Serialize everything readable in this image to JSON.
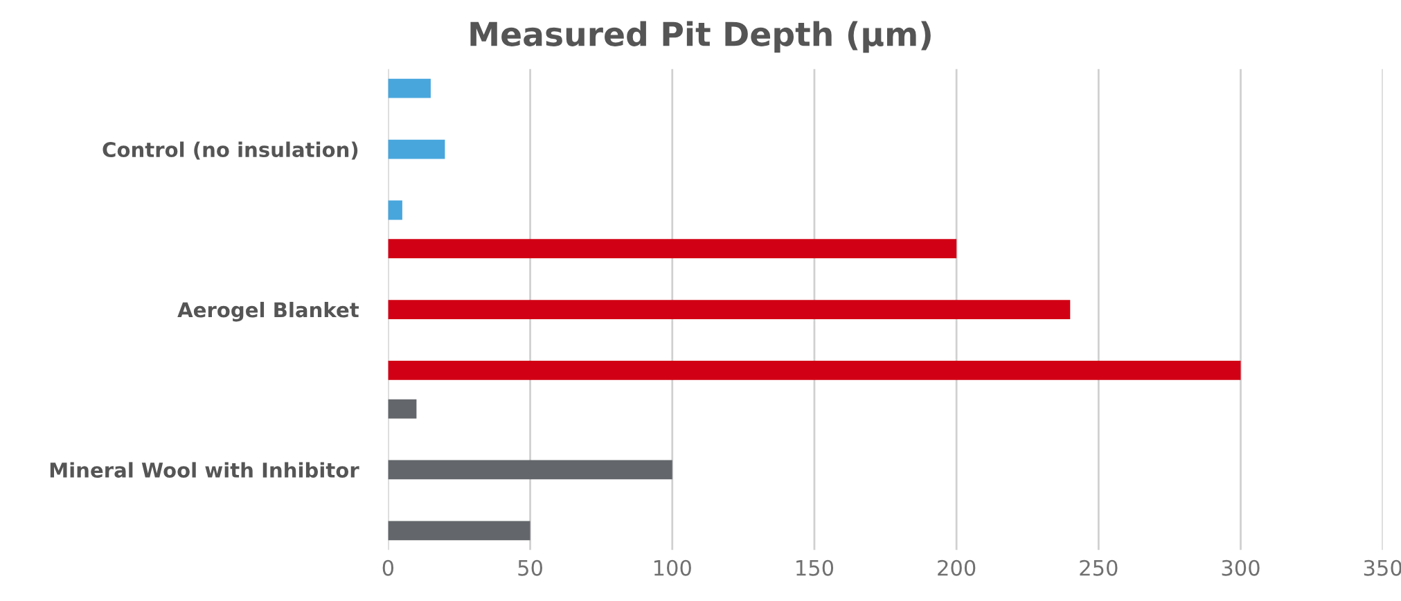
{
  "chart_data": {
    "type": "bar",
    "orientation": "horizontal",
    "title": "Measured Pit Depth (µm)",
    "categories": [
      "Control (no insulation)",
      "Aerogel Blanket",
      "Mineral Wool with Inhibitor"
    ],
    "series": [
      {
        "colors": [
          "#48a6dd",
          "#d20014",
          "#63666a"
        ],
        "values": [
          15,
          200,
          10
        ]
      },
      {
        "colors": [
          "#48a6dd",
          "#d20014",
          "#63666a"
        ],
        "values": [
          20,
          240,
          100
        ]
      },
      {
        "colors": [
          "#48a6dd",
          "#d20014",
          "#63666a"
        ],
        "values": [
          5,
          300,
          50
        ]
      }
    ],
    "xlim": [
      0,
      350
    ],
    "xticks": [
      0,
      50,
      100,
      150,
      200,
      250,
      300,
      350
    ],
    "grid": "x",
    "legend": false
  }
}
